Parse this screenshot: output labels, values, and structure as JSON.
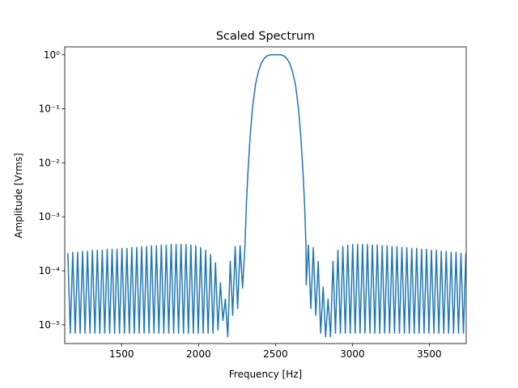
{
  "chart_data": {
    "type": "line",
    "title": "Scaled Spectrum",
    "xlabel": "Frequency [Hz]",
    "ylabel": "Amplitude [Vrms]",
    "log_y": true,
    "color": "#1f77b4",
    "xlim": [
      1130,
      3740
    ],
    "xticks": [
      1500,
      2000,
      2500,
      3000,
      3500
    ],
    "ylim": [
      4.5e-06,
      1.4
    ],
    "yticks": [
      {
        "value": 1e-05,
        "label": "10⁻⁵"
      },
      {
        "value": 0.0001,
        "label": "10⁻⁴"
      },
      {
        "value": 0.001,
        "label": "10⁻³"
      },
      {
        "value": 0.01,
        "label": "10⁻²"
      },
      {
        "value": 0.1,
        "label": "10⁻¹"
      },
      {
        "value": 1,
        "label": "10⁰"
      }
    ],
    "x": [
      1150,
      1166,
      1182,
      1198,
      1214,
      1230,
      1246,
      1262,
      1278,
      1294,
      1310,
      1326,
      1342,
      1358,
      1374,
      1390,
      1406,
      1422,
      1438,
      1454,
      1470,
      1486,
      1502,
      1518,
      1534,
      1550,
      1566,
      1582,
      1598,
      1614,
      1630,
      1646,
      1662,
      1678,
      1694,
      1710,
      1726,
      1742,
      1758,
      1774,
      1790,
      1806,
      1822,
      1838,
      1854,
      1870,
      1886,
      1902,
      1918,
      1934,
      1950,
      1966,
      1982,
      1998,
      2014,
      2030,
      2046,
      2062,
      2078,
      2094,
      2110,
      2126,
      2142,
      2158,
      2174,
      2190,
      2206,
      2222,
      2238,
      2254,
      2270,
      2286,
      2302,
      2310,
      2320,
      2335,
      2350,
      2370,
      2390,
      2410,
      2430,
      2450,
      2470,
      2500,
      2530,
      2550,
      2570,
      2590,
      2610,
      2630,
      2650,
      2665,
      2680,
      2690,
      2698,
      2700,
      2714,
      2730,
      2746,
      2762,
      2778,
      2794,
      2810,
      2826,
      2842,
      2858,
      2874,
      2890,
      2906,
      2922,
      2938,
      2954,
      2970,
      2986,
      3002,
      3018,
      3034,
      3050,
      3066,
      3082,
      3098,
      3114,
      3130,
      3146,
      3162,
      3178,
      3194,
      3210,
      3226,
      3242,
      3258,
      3274,
      3290,
      3306,
      3322,
      3338,
      3354,
      3370,
      3386,
      3402,
      3418,
      3434,
      3450,
      3466,
      3482,
      3498,
      3514,
      3530,
      3546,
      3562,
      3578,
      3594,
      3610,
      3626,
      3642,
      3658,
      3674,
      3690,
      3706,
      3722,
      3738
    ],
    "values": [
      0.00021,
      7e-06,
      0.00022,
      7e-06,
      0.00022,
      7e-06,
      0.00023,
      7e-06,
      0.00023,
      7e-06,
      0.00024,
      7e-06,
      0.00024,
      7e-06,
      0.00024,
      7e-06,
      0.00025,
      7e-06,
      0.00025,
      7e-06,
      0.00025,
      7e-06,
      0.00026,
      7e-06,
      0.00026,
      7e-06,
      0.00027,
      7e-06,
      0.00027,
      7e-06,
      0.00028,
      7e-06,
      0.00028,
      7e-06,
      0.00029,
      7e-06,
      0.00029,
      7e-06,
      0.0003,
      7e-06,
      0.0003,
      7e-06,
      0.00031,
      7e-06,
      0.00031,
      7e-06,
      0.00031,
      7e-06,
      0.00031,
      7e-06,
      0.0003,
      7e-06,
      0.00029,
      7e-06,
      0.00027,
      7e-06,
      0.00024,
      7e-06,
      0.0002,
      7e-06,
      0.00014,
      8e-06,
      6e-05,
      1.2e-05,
      3e-05,
      6e-06,
      0.00015,
      1.5e-05,
      0.00028,
      2e-05,
      0.00029,
      4.8e-05,
      0.0003,
      0.0015,
      0.006,
      0.03,
      0.1,
      0.28,
      0.5,
      0.72,
      0.88,
      0.97,
      1,
      1,
      1,
      0.97,
      0.88,
      0.72,
      0.5,
      0.28,
      0.1,
      0.03,
      0.006,
      0.0015,
      0.0003,
      5.5e-05,
      0.0003,
      2e-05,
      0.00027,
      1.5e-05,
      0.00015,
      7e-06,
      5e-05,
      6e-06,
      3e-05,
      6e-06,
      0.00015,
      7e-06,
      0.00024,
      7e-06,
      0.00028,
      7e-06,
      0.0003,
      7e-06,
      0.00031,
      7e-06,
      0.00031,
      7e-06,
      0.00031,
      7e-06,
      0.00031,
      7e-06,
      0.0003,
      7e-06,
      0.0003,
      7e-06,
      0.00029,
      7e-06,
      0.00029,
      7e-06,
      0.00028,
      7e-06,
      0.00028,
      7e-06,
      0.00027,
      7e-06,
      0.00027,
      7e-06,
      0.00026,
      7e-06,
      0.00026,
      7e-06,
      0.00025,
      7e-06,
      0.00025,
      7e-06,
      0.00024,
      7e-06,
      0.00024,
      7e-06,
      0.00023,
      7e-06,
      0.00023,
      7e-06,
      0.00022,
      7e-06,
      0.00022,
      7e-06,
      0.00021,
      7e-06,
      0.00021
    ]
  }
}
